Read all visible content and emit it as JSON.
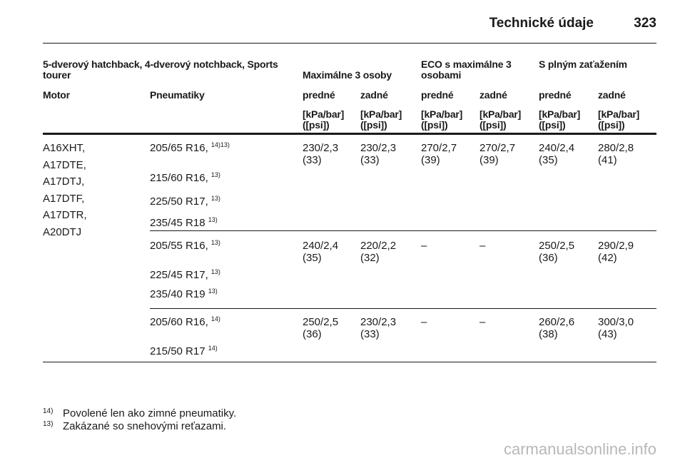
{
  "header": {
    "title": "Technické údaje",
    "page": "323"
  },
  "table": {
    "group_headers": [
      "5-dverový hatchback, 4-dverový notchback, Sports tourer",
      "Maximálne 3 osoby",
      "ECO s maximálne 3 osobami",
      "S plným zaťažením"
    ],
    "columns": [
      "Motor",
      "Pneumatiky",
      "predné",
      "zadné",
      "predné",
      "zadné",
      "predné",
      "zadné"
    ],
    "units": [
      {
        "kpa": "[kPa/bar]",
        "psi": "([psi])"
      },
      {
        "kpa": "[kPa/bar]",
        "psi": "([psi])"
      },
      {
        "kpa": "[kPa/bar]",
        "psi": "([psi])"
      },
      {
        "kpa": "[kPa/bar]",
        "psi": "([psi])"
      },
      {
        "kpa": "[kPa/bar]",
        "psi": "([psi])"
      },
      {
        "kpa": "[kPa/bar]",
        "psi": "([psi])"
      }
    ],
    "engines": [
      "A16XHT,",
      "A17DTE,",
      "A17DTJ,",
      "A17DTF,",
      "A17DTR,",
      "A20DTJ"
    ],
    "groups": [
      {
        "tires": [
          {
            "size": "205/65 R16,",
            "note": "14)13)"
          },
          {
            "size": "215/60 R16,",
            "note": "13)"
          },
          {
            "size": "225/50 R17,",
            "note": "13)"
          },
          {
            "size": "235/45 R18",
            "note": "13)"
          }
        ],
        "values": [
          {
            "bar": "230/2,3",
            "psi": "(33)"
          },
          {
            "bar": "230/2,3",
            "psi": "(33)"
          },
          {
            "bar": "270/2,7",
            "psi": "(39)"
          },
          {
            "bar": "270/2,7",
            "psi": "(39)"
          },
          {
            "bar": "240/2,4",
            "psi": "(35)"
          },
          {
            "bar": "280/2,8",
            "psi": "(41)"
          }
        ]
      },
      {
        "tires": [
          {
            "size": "205/55 R16,",
            "note": "13)"
          },
          {
            "size": "225/45 R17,",
            "note": "13)"
          },
          {
            "size": "235/40 R19",
            "note": "13)"
          }
        ],
        "values": [
          {
            "bar": "240/2,4",
            "psi": "(35)"
          },
          {
            "bar": "220/2,2",
            "psi": "(32)"
          },
          {
            "bar": "–"
          },
          {
            "bar": "–"
          },
          {
            "bar": "250/2,5",
            "psi": "(36)"
          },
          {
            "bar": "290/2,9",
            "psi": "(42)"
          }
        ]
      },
      {
        "tires": [
          {
            "size": "205/60 R16,",
            "note": "14)"
          },
          {
            "size": "215/50 R17",
            "note": "14)"
          }
        ],
        "values": [
          {
            "bar": "250/2,5",
            "psi": "(36)"
          },
          {
            "bar": "230/2,3",
            "psi": "(33)"
          },
          {
            "bar": "–"
          },
          {
            "bar": "–"
          },
          {
            "bar": "260/2,6",
            "psi": "(38)"
          },
          {
            "bar": "300/3,0",
            "psi": "(43)"
          }
        ]
      }
    ]
  },
  "footnotes": [
    {
      "mark": "14)",
      "text": "Povolené len ako zimné pneumatiky."
    },
    {
      "mark": "13)",
      "text": "Zakázané so snehovými reťazami."
    }
  ],
  "watermark": "carmanualsonline.info"
}
